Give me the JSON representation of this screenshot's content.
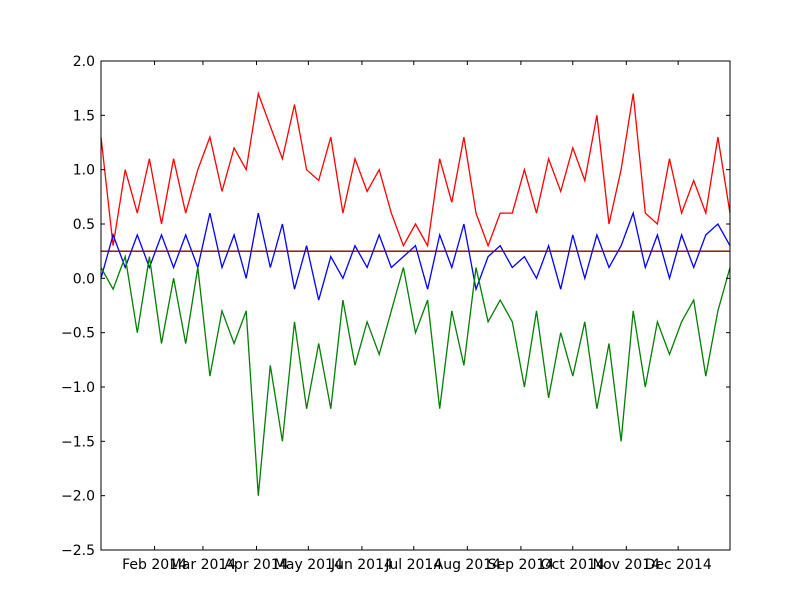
{
  "chart_data": {
    "type": "line",
    "title": "",
    "xlabel": "",
    "ylabel": "",
    "x_range": [
      "2014-01-01",
      "2014-12-31"
    ],
    "ylim": [
      -2.5,
      2.0
    ],
    "yticks": [
      -2.5,
      -2.0,
      -1.5,
      -1.0,
      -0.5,
      0.0,
      0.5,
      1.0,
      1.5,
      2.0
    ],
    "ytick_labels": [
      "−2.5",
      "−2.0",
      "−1.5",
      "−1.0",
      "−0.5",
      "0.0",
      "0.5",
      "1.0",
      "1.5",
      "2.0"
    ],
    "xticks": [
      "2014-02-01",
      "2014-03-01",
      "2014-04-01",
      "2014-05-01",
      "2014-06-01",
      "2014-07-01",
      "2014-08-01",
      "2014-09-01",
      "2014-10-01",
      "2014-11-01",
      "2014-12-01"
    ],
    "xtick_labels": [
      "Feb 2014",
      "Mar 2014",
      "Apr 2014",
      "May 2014",
      "Jun 2014",
      "Jul 2014",
      "Aug 2014",
      "Sep 2014",
      "Oct 2014",
      "Nov 2014",
      "Dec 2014"
    ],
    "grid": false,
    "legend": "none",
    "x": [
      "2014-01-01",
      "2014-01-08",
      "2014-01-15",
      "2014-01-22",
      "2014-01-29",
      "2014-02-05",
      "2014-02-12",
      "2014-02-19",
      "2014-02-26",
      "2014-03-05",
      "2014-03-12",
      "2014-03-19",
      "2014-03-26",
      "2014-04-02",
      "2014-04-09",
      "2014-04-16",
      "2014-04-23",
      "2014-04-30",
      "2014-05-07",
      "2014-05-14",
      "2014-05-21",
      "2014-05-28",
      "2014-06-04",
      "2014-06-11",
      "2014-06-18",
      "2014-06-25",
      "2014-07-02",
      "2014-07-09",
      "2014-07-16",
      "2014-07-23",
      "2014-07-30",
      "2014-08-06",
      "2014-08-13",
      "2014-08-20",
      "2014-08-27",
      "2014-09-03",
      "2014-09-10",
      "2014-09-17",
      "2014-09-24",
      "2014-10-01",
      "2014-10-08",
      "2014-10-15",
      "2014-10-22",
      "2014-10-29",
      "2014-11-05",
      "2014-11-12",
      "2014-11-19",
      "2014-11-26",
      "2014-12-03",
      "2014-12-10",
      "2014-12-17",
      "2014-12-24",
      "2014-12-31"
    ],
    "series": [
      {
        "color": "#ff0000",
        "values": [
          1.3,
          0.3,
          1.0,
          0.6,
          1.1,
          0.5,
          1.1,
          0.6,
          1.0,
          1.3,
          0.8,
          1.2,
          1.0,
          1.7,
          1.4,
          1.1,
          1.6,
          1.0,
          0.9,
          1.3,
          0.6,
          1.1,
          0.8,
          1.0,
          0.6,
          0.3,
          0.5,
          0.3,
          1.1,
          0.7,
          1.3,
          0.6,
          0.3,
          0.6,
          0.6,
          1.0,
          0.6,
          1.1,
          0.8,
          1.2,
          0.9,
          1.5,
          0.5,
          1.0,
          1.7,
          0.6,
          0.5,
          1.1,
          0.6,
          0.9,
          0.6,
          1.3,
          0.6
        ]
      },
      {
        "color": "#0000ff",
        "values": [
          0.0,
          0.4,
          0.1,
          0.4,
          0.1,
          0.4,
          0.1,
          0.4,
          0.1,
          0.6,
          0.1,
          0.4,
          0.0,
          0.6,
          0.1,
          0.5,
          -0.1,
          0.3,
          -0.2,
          0.2,
          0.0,
          0.3,
          0.1,
          0.4,
          0.1,
          0.2,
          0.3,
          -0.1,
          0.4,
          0.1,
          0.5,
          -0.1,
          0.2,
          0.3,
          0.1,
          0.2,
          0.0,
          0.3,
          -0.1,
          0.4,
          0.0,
          0.4,
          0.1,
          0.3,
          0.6,
          0.1,
          0.4,
          0.0,
          0.4,
          0.1,
          0.4,
          0.5,
          0.3
        ]
      },
      {
        "color": "#008000",
        "values": [
          0.1,
          -0.1,
          0.2,
          -0.5,
          0.2,
          -0.6,
          0.0,
          -0.6,
          0.1,
          -0.9,
          -0.3,
          -0.6,
          -0.3,
          -2.0,
          -0.8,
          -1.5,
          -0.4,
          -1.2,
          -0.6,
          -1.2,
          -0.2,
          -0.8,
          -0.4,
          -0.7,
          -0.3,
          0.1,
          -0.5,
          -0.2,
          -1.2,
          -0.3,
          -0.8,
          0.1,
          -0.4,
          -0.2,
          -0.4,
          -1.0,
          -0.3,
          -1.1,
          -0.5,
          -0.9,
          -0.4,
          -1.2,
          -0.6,
          -1.5,
          -0.3,
          -1.0,
          -0.4,
          -0.7,
          -0.4,
          -0.2,
          -0.9,
          -0.3,
          0.1
        ]
      },
      {
        "color": "#8b0000",
        "values": [
          0.25,
          0.25,
          0.25,
          0.25,
          0.25,
          0.25,
          0.25,
          0.25,
          0.25,
          0.25,
          0.25,
          0.25,
          0.25,
          0.25,
          0.25,
          0.25,
          0.25,
          0.25,
          0.25,
          0.25,
          0.25,
          0.25,
          0.25,
          0.25,
          0.25,
          0.25,
          0.25,
          0.25,
          0.25,
          0.25,
          0.25,
          0.25,
          0.25,
          0.25,
          0.25,
          0.25,
          0.25,
          0.25,
          0.25,
          0.25,
          0.25,
          0.25,
          0.25,
          0.25,
          0.25,
          0.25,
          0.25,
          0.25,
          0.25,
          0.25,
          0.25,
          0.25,
          0.25
        ]
      }
    ]
  }
}
